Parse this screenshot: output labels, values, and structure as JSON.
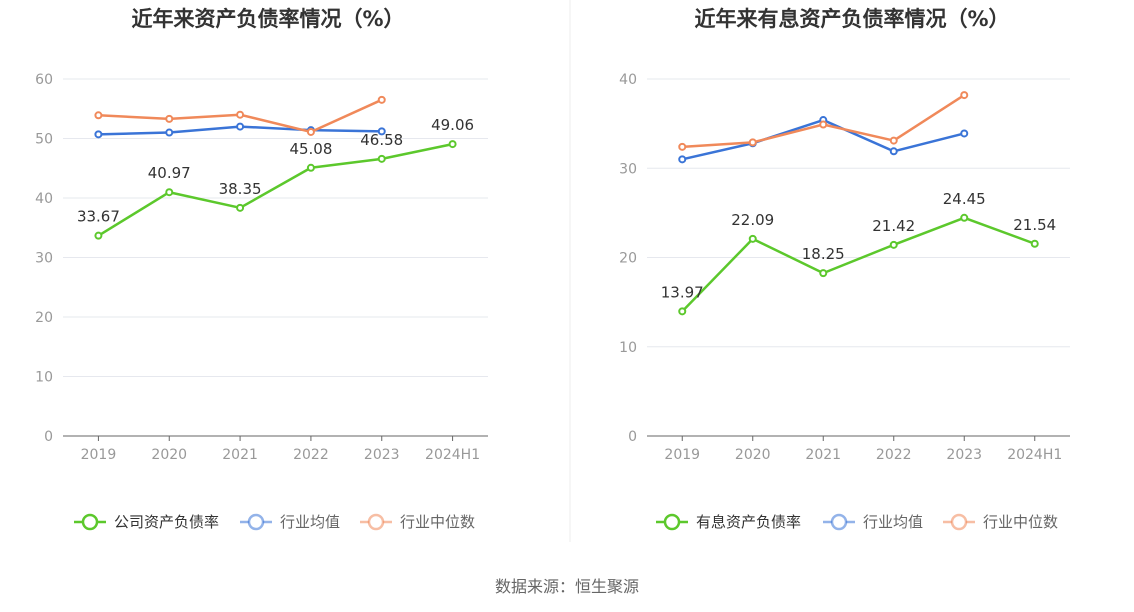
{
  "source": "数据来源：恒生聚源",
  "colors": {
    "company": "#5cc82c",
    "industry_avg": "#3a74d7",
    "industry_median": "#f0895a",
    "grid": "#e6e8ee",
    "axis": "#666666"
  },
  "chart_data": [
    {
      "type": "line",
      "title": "近年来资产负债率情况（%）",
      "categories": [
        "2019",
        "2020",
        "2021",
        "2022",
        "2023",
        "2024H1"
      ],
      "ylim": [
        0,
        60
      ],
      "yticks": [
        0,
        10,
        20,
        30,
        40,
        50,
        60
      ],
      "grid": true,
      "legend_position": "bottom",
      "series": [
        {
          "name": "公司资产负债率",
          "key": "company",
          "values": [
            33.67,
            40.97,
            38.35,
            45.08,
            46.58,
            49.06
          ],
          "labels": [
            "33.67",
            "40.97",
            "38.35",
            "45.08",
            "46.58",
            "49.06"
          ]
        },
        {
          "name": "行业均值",
          "key": "industry_avg",
          "values": [
            50.7,
            51.0,
            52.0,
            51.4,
            51.2,
            null
          ]
        },
        {
          "name": "行业中位数",
          "key": "industry_median",
          "values": [
            53.9,
            53.3,
            54.0,
            51.1,
            56.5,
            null
          ]
        }
      ]
    },
    {
      "type": "line",
      "title": "近年来有息资产负债率情况（%）",
      "categories": [
        "2019",
        "2020",
        "2021",
        "2022",
        "2023",
        "2024H1"
      ],
      "ylim": [
        0,
        40
      ],
      "yticks": [
        0,
        10,
        20,
        30,
        40
      ],
      "grid": true,
      "legend_position": "bottom",
      "series": [
        {
          "name": "有息资产负债率",
          "key": "company",
          "values": [
            13.97,
            22.09,
            18.25,
            21.42,
            24.45,
            21.54
          ],
          "labels": [
            "13.97",
            "22.09",
            "18.25",
            "21.42",
            "24.45",
            "21.54"
          ]
        },
        {
          "name": "行业均值",
          "key": "industry_avg",
          "values": [
            31.0,
            32.8,
            35.4,
            31.9,
            33.9,
            null
          ]
        },
        {
          "name": "行业中位数",
          "key": "industry_median",
          "values": [
            32.4,
            32.9,
            34.9,
            33.1,
            38.2,
            null
          ]
        }
      ]
    }
  ]
}
